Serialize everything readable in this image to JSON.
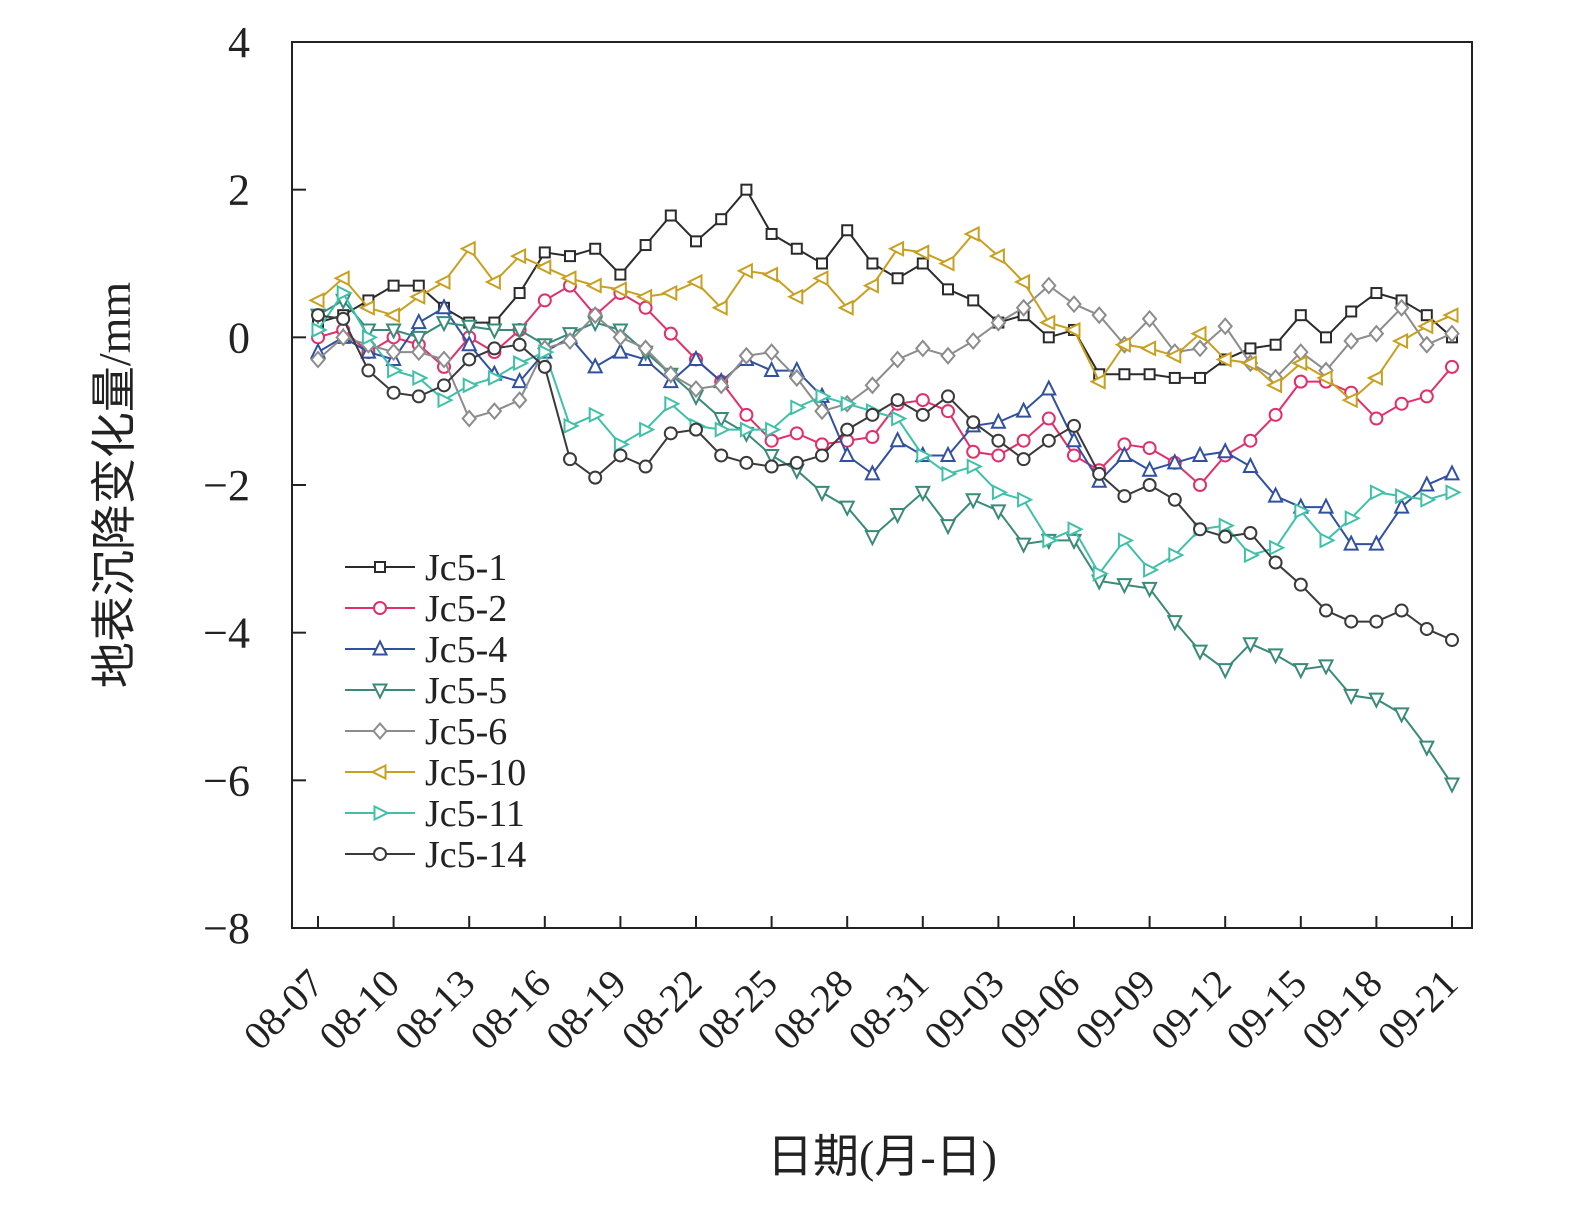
{
  "chart_data": {
    "type": "line",
    "title": "",
    "xlabel": "日期(月-日)",
    "ylabel": "地表沉降变化量/mm",
    "ylim": [
      -8,
      4
    ],
    "yticks": [
      "4",
      "2",
      "0",
      "−2",
      "−4",
      "−6",
      "−8"
    ],
    "ytick_values": [
      4,
      2,
      0,
      -2,
      -4,
      -6,
      -8
    ],
    "xtick_labels": [
      "08-07",
      "08-10",
      "08-13",
      "08-16",
      "08-19",
      "08-22",
      "08-25",
      "08-28",
      "08-31",
      "09-03",
      "09-06",
      "09-09",
      "09-12",
      "09-15",
      "09-18",
      "09-21"
    ],
    "x_start": "08-07",
    "x_end": "09-21",
    "legend_position": "lower-left",
    "grid": false,
    "series": [
      {
        "name": "Jc5-1",
        "marker": "square",
        "color": "#2b2b2b",
        "values": [
          0.2,
          0.3,
          0.5,
          0.7,
          0.7,
          0.4,
          0.2,
          0.2,
          0.6,
          1.15,
          1.1,
          1.2,
          0.85,
          1.25,
          1.65,
          1.3,
          1.6,
          2.0,
          1.4,
          1.2,
          1.0,
          1.45,
          1.0,
          0.8,
          1.0,
          0.65,
          0.5,
          0.2,
          0.3,
          0.0,
          0.1,
          -0.5,
          -0.5,
          -0.5,
          -0.55,
          -0.55,
          -0.3,
          -0.15,
          -0.1,
          0.3,
          0.0,
          0.35,
          0.6,
          0.5,
          0.3,
          0.0
        ]
      },
      {
        "name": "Jc5-2",
        "marker": "circle",
        "color": "#e0306a",
        "values": [
          0.0,
          0.1,
          -0.2,
          0.0,
          -0.1,
          -0.4,
          0.0,
          -0.2,
          0.1,
          0.5,
          0.7,
          0.3,
          0.6,
          0.4,
          0.05,
          -0.3,
          -0.6,
          -1.05,
          -1.4,
          -1.3,
          -1.45,
          -1.4,
          -1.35,
          -0.9,
          -0.85,
          -1.0,
          -1.55,
          -1.6,
          -1.4,
          -1.1,
          -1.6,
          -1.8,
          -1.45,
          -1.5,
          -1.7,
          -2.0,
          -1.6,
          -1.4,
          -1.05,
          -0.6,
          -0.6,
          -0.75,
          -1.1,
          -0.9,
          -0.8,
          -0.4
        ]
      },
      {
        "name": "Jc5-4",
        "marker": "triangle-up",
        "color": "#3050a0",
        "values": [
          -0.2,
          0.0,
          -0.2,
          -0.3,
          0.2,
          0.4,
          -0.1,
          -0.5,
          -0.6,
          -0.2,
          0.0,
          -0.4,
          -0.2,
          -0.3,
          -0.6,
          -0.3,
          -0.6,
          -0.3,
          -0.45,
          -0.45,
          -0.8,
          -1.6,
          -1.85,
          -1.4,
          -1.6,
          -1.6,
          -1.2,
          -1.15,
          -1.0,
          -0.7,
          -1.4,
          -1.95,
          -1.6,
          -1.8,
          -1.7,
          -1.6,
          -1.55,
          -1.75,
          -2.15,
          -2.3,
          -2.3,
          -2.8,
          -2.8,
          -2.3,
          -2.0,
          -1.85
        ]
      },
      {
        "name": "Jc5-5",
        "marker": "triangle-down",
        "color": "#3a8a7a",
        "values": [
          0.3,
          0.5,
          0.1,
          0.1,
          0.0,
          0.2,
          0.15,
          0.1,
          0.1,
          -0.1,
          0.05,
          0.2,
          0.1,
          -0.2,
          -0.5,
          -0.8,
          -1.1,
          -1.3,
          -1.6,
          -1.8,
          -2.1,
          -2.3,
          -2.7,
          -2.4,
          -2.1,
          -2.55,
          -2.2,
          -2.35,
          -2.8,
          -2.75,
          -2.75,
          -3.3,
          -3.35,
          -3.4,
          -3.85,
          -4.25,
          -4.5,
          -4.15,
          -4.3,
          -4.5,
          -4.45,
          -4.85,
          -4.9,
          -5.1,
          -5.55,
          -6.05
        ]
      },
      {
        "name": "Jc5-6",
        "marker": "diamond",
        "color": "#8c8c8c",
        "values": [
          -0.3,
          0.0,
          -0.1,
          -0.2,
          -0.2,
          -0.3,
          -1.1,
          -1.0,
          -0.85,
          -0.15,
          -0.05,
          0.3,
          0.0,
          -0.15,
          -0.5,
          -0.7,
          -0.65,
          -0.25,
          -0.2,
          -0.55,
          -1.0,
          -0.9,
          -0.65,
          -0.3,
          -0.15,
          -0.25,
          -0.05,
          0.2,
          0.4,
          0.7,
          0.45,
          0.3,
          -0.1,
          0.25,
          -0.2,
          -0.15,
          0.15,
          -0.35,
          -0.55,
          -0.2,
          -0.45,
          -0.05,
          0.05,
          0.4,
          -0.1,
          0.05
        ]
      },
      {
        "name": "Jc5-10",
        "marker": "triangle-left",
        "color": "#c8a020",
        "values": [
          0.5,
          0.8,
          0.4,
          0.3,
          0.55,
          0.75,
          1.2,
          0.75,
          1.1,
          0.95,
          0.8,
          0.7,
          0.65,
          0.55,
          0.6,
          0.75,
          0.4,
          0.9,
          0.85,
          0.55,
          0.8,
          0.4,
          0.7,
          1.2,
          1.15,
          1.0,
          1.4,
          1.1,
          0.75,
          0.2,
          0.1,
          -0.6,
          -0.1,
          -0.15,
          -0.25,
          0.05,
          -0.3,
          -0.35,
          -0.65,
          -0.35,
          -0.55,
          -0.85,
          -0.55,
          -0.05,
          0.15,
          0.3
        ]
      },
      {
        "name": "Jc5-11",
        "marker": "triangle-right",
        "color": "#40c0a8",
        "values": [
          0.1,
          0.6,
          0.0,
          -0.45,
          -0.55,
          -0.85,
          -0.65,
          -0.55,
          -0.35,
          -0.2,
          -1.2,
          -1.05,
          -1.45,
          -1.25,
          -0.9,
          -1.2,
          -1.25,
          -1.25,
          -1.25,
          -0.95,
          -0.8,
          -0.9,
          -1.0,
          -1.1,
          -1.6,
          -1.85,
          -1.75,
          -2.1,
          -2.2,
          -2.75,
          -2.6,
          -3.2,
          -2.75,
          -3.15,
          -2.95,
          -2.6,
          -2.55,
          -2.95,
          -2.85,
          -2.35,
          -2.75,
          -2.45,
          -2.1,
          -2.15,
          -2.2,
          -2.1
        ]
      },
      {
        "name": "Jc5-14",
        "marker": "circle",
        "color": "#3a3a3a",
        "values": [
          0.3,
          0.25,
          -0.45,
          -0.75,
          -0.8,
          -0.65,
          -0.3,
          -0.15,
          -0.1,
          -0.4,
          -1.65,
          -1.9,
          -1.6,
          -1.75,
          -1.3,
          -1.25,
          -1.6,
          -1.7,
          -1.75,
          -1.7,
          -1.6,
          -1.25,
          -1.05,
          -0.85,
          -1.05,
          -0.8,
          -1.15,
          -1.4,
          -1.65,
          -1.4,
          -1.2,
          -1.85,
          -2.15,
          -2.0,
          -2.2,
          -2.6,
          -2.7,
          -2.65,
          -3.05,
          -3.35,
          -3.7,
          -3.85,
          -3.85,
          -3.7,
          -3.95,
          -4.1
        ]
      }
    ]
  }
}
